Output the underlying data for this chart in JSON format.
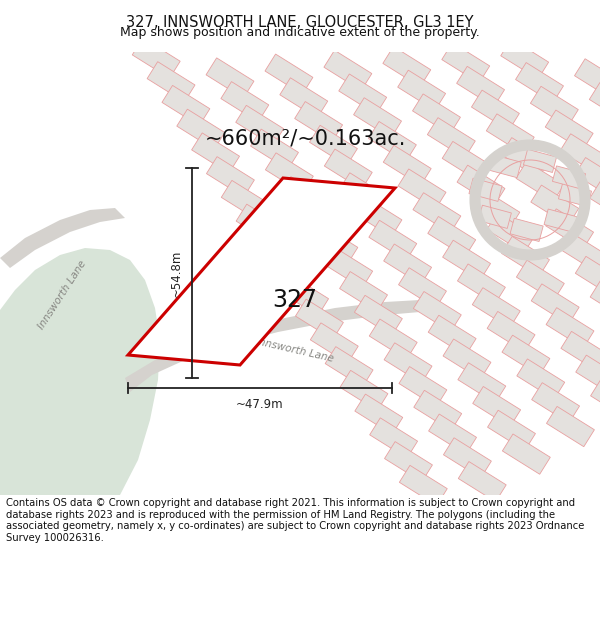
{
  "title": "327, INNSWORTH LANE, GLOUCESTER, GL3 1EY",
  "subtitle": "Map shows position and indicative extent of the property.",
  "area_label": "~660m²/~0.163ac.",
  "property_number": "327",
  "dim_height": "~54.8m",
  "dim_width": "~47.9m",
  "road_label1": "Innsworth Lane",
  "road_label2": "Innsworth Lane",
  "footer": "Contains OS data © Crown copyright and database right 2021. This information is subject to Crown copyright and database rights 2023 and is reproduced with the permission of HM Land Registry. The polygons (including the associated geometry, namely x, y co-ordinates) are subject to Crown copyright and database rights 2023 Ordnance Survey 100026316.",
  "map_bg": "#eae8e5",
  "green_color": "#d8e4d8",
  "road_color": "#d5d2ce",
  "building_fill": "#e4e1de",
  "building_stroke": "#e8a0a0",
  "grid_line_color": "#ddd8d4",
  "highlight_stroke": "#cc0000",
  "highlight_fill": "#ffffff",
  "dim_color": "#222222",
  "road_label_color": "#888884",
  "title_fontsize": 10.5,
  "subtitle_fontsize": 9,
  "footer_fontsize": 7.2
}
